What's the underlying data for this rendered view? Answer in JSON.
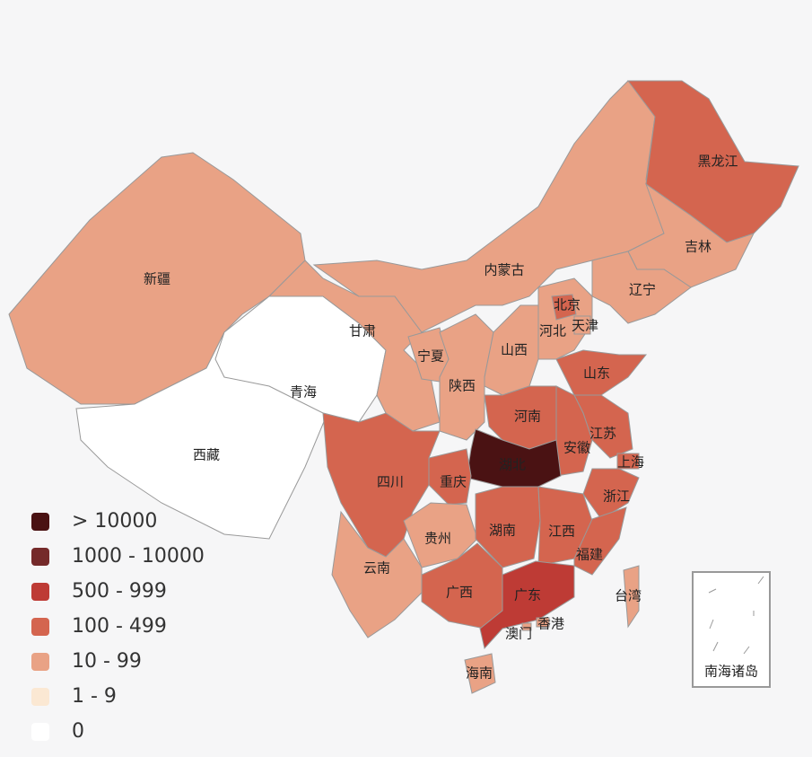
{
  "legend": [
    {
      "label": "> 10000",
      "color": "#4a1213"
    },
    {
      "label": "1000 - 10000",
      "color": "#752a2a"
    },
    {
      "label": "500 - 999",
      "color": "#be3b35"
    },
    {
      "label": "100 - 499",
      "color": "#d4654f"
    },
    {
      "label": "10 - 99",
      "color": "#e9a285"
    },
    {
      "label": "1 - 9",
      "color": "#fbe8d3"
    },
    {
      "label": "0",
      "color": "#ffffff"
    }
  ],
  "regions": [
    {
      "name": "新疆",
      "color": "#e9a285"
    },
    {
      "name": "西藏",
      "color": "#ffffff"
    },
    {
      "name": "青海",
      "color": "#ffffff"
    },
    {
      "name": "甘肃",
      "color": "#e9a285"
    },
    {
      "name": "内蒙古",
      "color": "#e9a285"
    },
    {
      "name": "黑龙江",
      "color": "#d4654f"
    },
    {
      "name": "吉林",
      "color": "#e9a285"
    },
    {
      "name": "辽宁",
      "color": "#e9a285"
    },
    {
      "name": "宁夏",
      "color": "#e9a285"
    },
    {
      "name": "陕西",
      "color": "#e9a285"
    },
    {
      "name": "山西",
      "color": "#e9a285"
    },
    {
      "name": "河北",
      "color": "#e9a285"
    },
    {
      "name": "北京",
      "color": "#d4654f"
    },
    {
      "name": "天津",
      "color": "#e9a285"
    },
    {
      "name": "山东",
      "color": "#d4654f"
    },
    {
      "name": "河南",
      "color": "#d4654f"
    },
    {
      "name": "江苏",
      "color": "#d4654f"
    },
    {
      "name": "安徽",
      "color": "#d4654f"
    },
    {
      "name": "上海",
      "color": "#d4654f"
    },
    {
      "name": "浙江",
      "color": "#d4654f"
    },
    {
      "name": "湖北",
      "color": "#4a1213"
    },
    {
      "name": "重庆",
      "color": "#d4654f"
    },
    {
      "name": "四川",
      "color": "#d4654f"
    },
    {
      "name": "贵州",
      "color": "#e9a285"
    },
    {
      "name": "云南",
      "color": "#e9a285"
    },
    {
      "name": "湖南",
      "color": "#d4654f"
    },
    {
      "name": "江西",
      "color": "#d4654f"
    },
    {
      "name": "福建",
      "color": "#d4654f"
    },
    {
      "name": "广西",
      "color": "#d4654f"
    },
    {
      "name": "广东",
      "color": "#be3b35"
    },
    {
      "name": "海南",
      "color": "#e9a285"
    },
    {
      "name": "台湾",
      "color": "#e9a285"
    },
    {
      "name": "香港",
      "color": "#e9a285"
    },
    {
      "name": "澳门",
      "color": "#e9a285"
    }
  ],
  "inset": {
    "label": "南海诸岛"
  }
}
